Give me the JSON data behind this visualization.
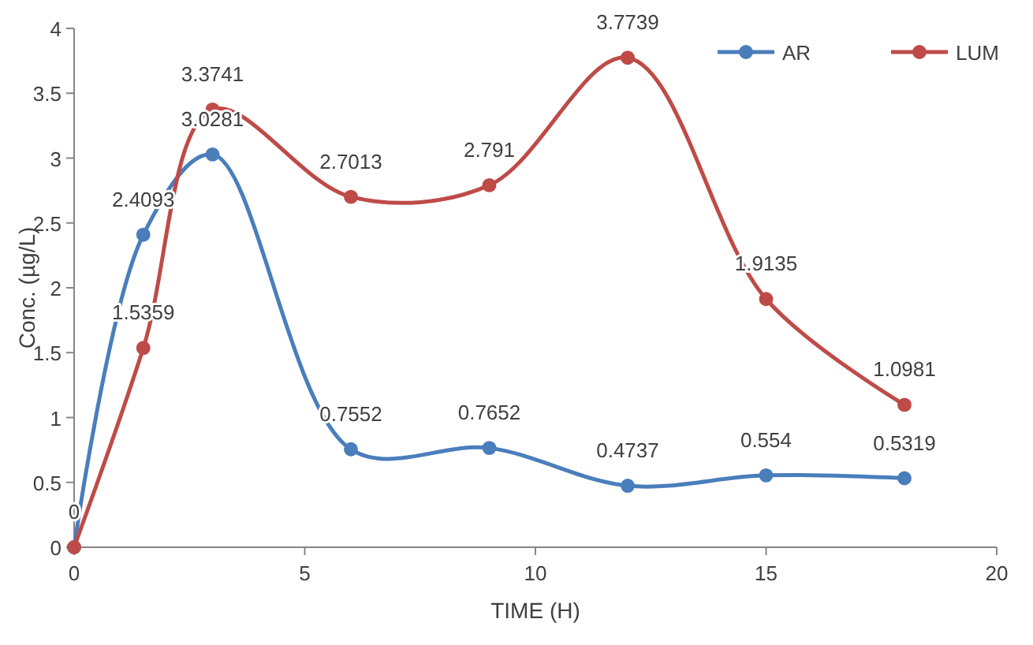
{
  "chart_data": {
    "type": "line",
    "xlabel": "TIME (H)",
    "ylabel": "Conc.  (µg/L)",
    "x": [
      0,
      1.5,
      3,
      6,
      9,
      12,
      15,
      18
    ],
    "series": [
      {
        "name": "AR",
        "color": "#4a7ebb",
        "values": [
          0,
          2.4093,
          3.0281,
          0.7552,
          0.7652,
          0.4737,
          0.554,
          0.5319
        ],
        "value_labels": [
          "0",
          "2.4093",
          "3.0281",
          "0.7552",
          "0.7652",
          "0.4737",
          "0.554",
          "0.5319"
        ]
      },
      {
        "name": "LUM",
        "color": "#be4b48",
        "values": [
          0,
          1.5359,
          3.3741,
          2.7013,
          2.791,
          3.7739,
          1.9135,
          1.0981
        ],
        "value_labels": [
          null,
          "1.5359",
          "3.3741",
          "2.7013",
          "2.791",
          "3.7739",
          "1.9135",
          "1.0981"
        ]
      }
    ],
    "xlim": [
      0,
      20
    ],
    "xticks": [
      0,
      5,
      10,
      15,
      20
    ],
    "ylim": [
      0,
      4
    ],
    "yticks": [
      0,
      0.5,
      1,
      1.5,
      2,
      2.5,
      3,
      3.5,
      4
    ],
    "grid": false,
    "legend": "top right",
    "marker": "circle",
    "line_style": "solid"
  }
}
